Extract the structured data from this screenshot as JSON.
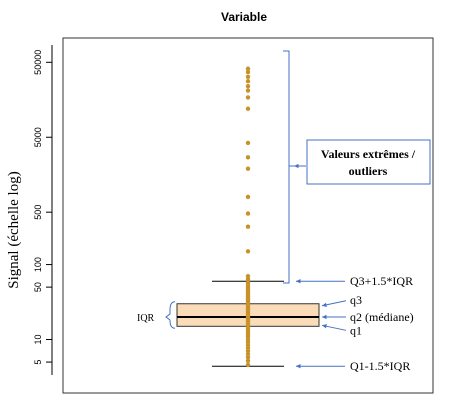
{
  "chart_data": {
    "type": "box",
    "title": "Variable",
    "ylabel": "Signal (échelle log)",
    "y_scale": "log",
    "ylim": [
      3.8,
      80000
    ],
    "yticks": [
      {
        "value": 5,
        "label": "5"
      },
      {
        "value": 10,
        "label": "10"
      },
      {
        "value": 50,
        "label": "50"
      },
      {
        "value": 100,
        "label": "100"
      },
      {
        "value": 500,
        "label": "500"
      },
      {
        "value": 5000,
        "label": "5000"
      },
      {
        "value": 50000,
        "label": "50000"
      }
    ],
    "grid": false,
    "box": {
      "whisker_low": 4.4,
      "q1": 15,
      "median": 20,
      "q3": 30,
      "whisker_high": 60
    },
    "points_color": "#c8922a",
    "box_fill": "#fbdcb8",
    "annotation_color": "#4472c4",
    "points": [
      4.6,
      5.2,
      5.8,
      6.4,
      7,
      7.7,
      8.4,
      9.2,
      10,
      10.8,
      11.6,
      12.4,
      13.2,
      14,
      14.8,
      15.6,
      16.4,
      17.2,
      18,
      18.9,
      19.8,
      20.7,
      21.6,
      22.6,
      23.6,
      24.6,
      25.7,
      26.8,
      28,
      29.2,
      30.5,
      31.8,
      33.2,
      34.6,
      36,
      37.6,
      39.2,
      41,
      43,
      45,
      47.5,
      50,
      52.5,
      55,
      58,
      64,
      70,
      150,
      320,
      480,
      800,
      1900,
      2700,
      4200,
      12000,
      17000,
      21000,
      24000,
      28000,
      32000,
      37000,
      41000
    ],
    "annotations": {
      "outliers": "Valeurs extrêmes / outliers",
      "upper_whisker": "Q3+1.5*IQR",
      "q3": "q3",
      "median": "q2 (médiane)",
      "q1": "q1",
      "lower_whisker": "Q1-1.5*IQR",
      "iqr": "IQR"
    }
  }
}
